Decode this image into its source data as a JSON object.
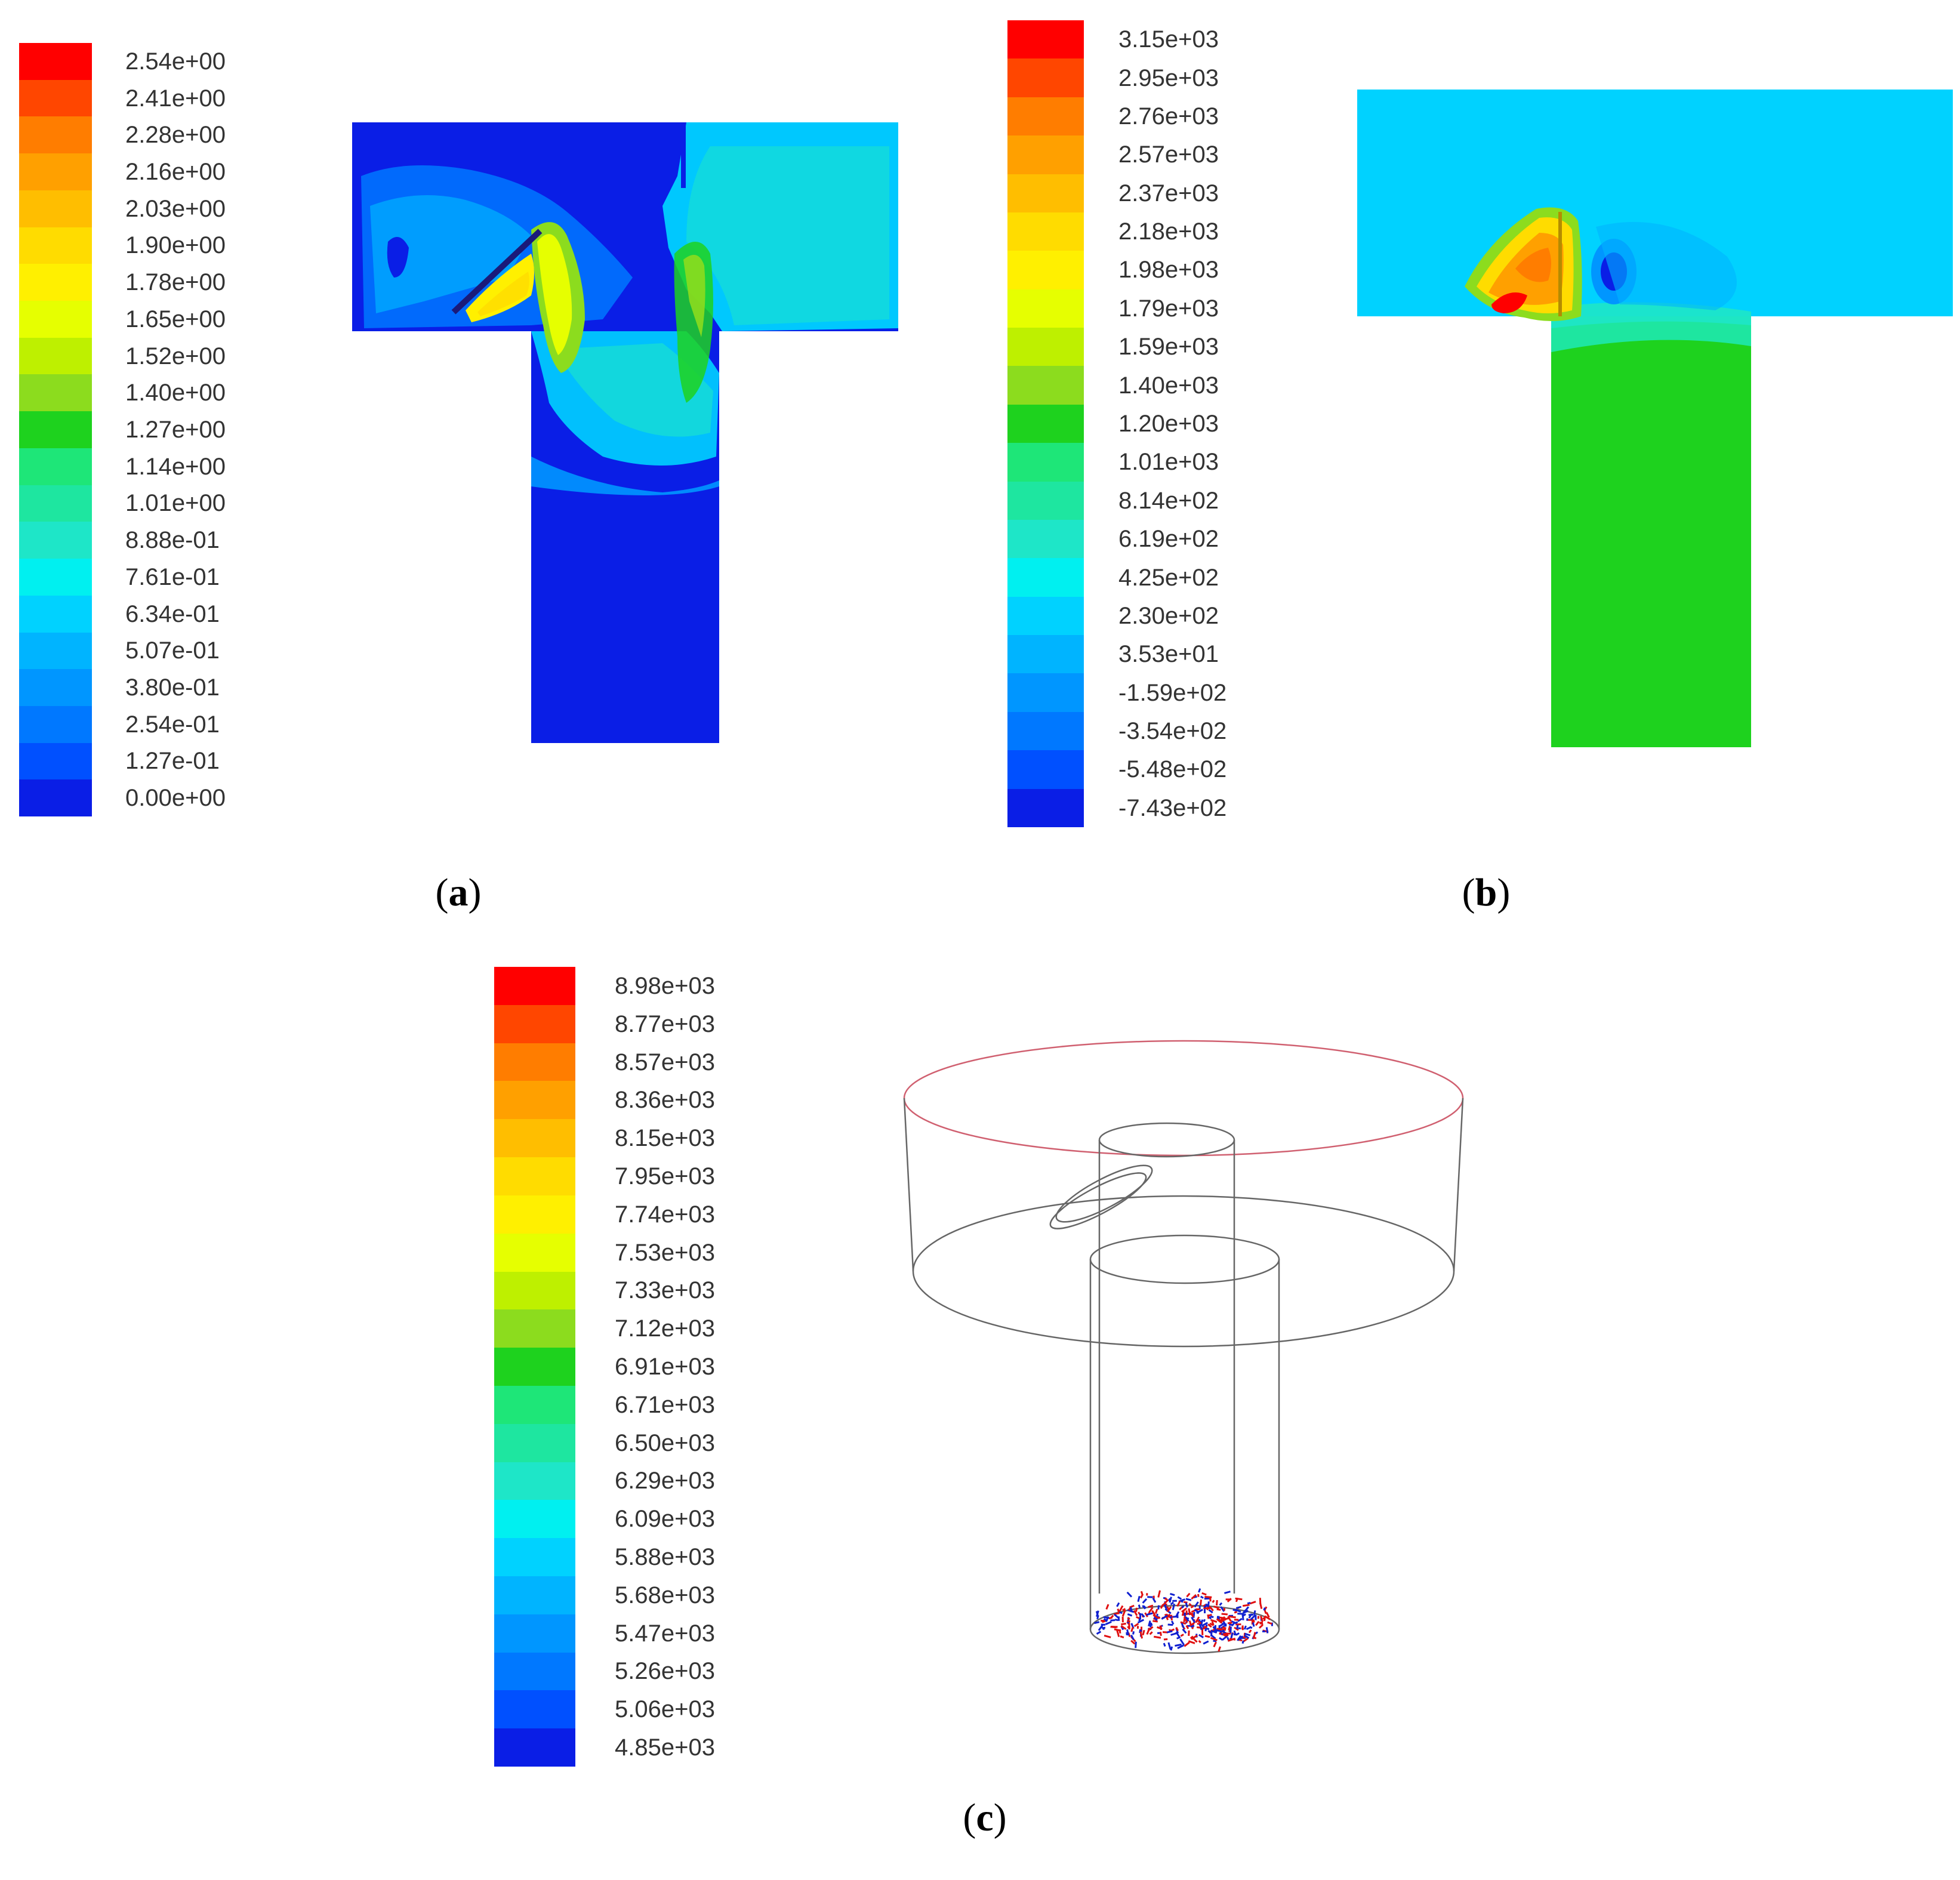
{
  "panels": {
    "a": {
      "caption_open": "(",
      "caption_letter": "a",
      "caption_close": ")",
      "legend_labels": [
        "2.54e+00",
        "2.41e+00",
        "2.28e+00",
        "2.16e+00",
        "2.03e+00",
        "1.90e+00",
        "1.78e+00",
        "1.65e+00",
        "1.52e+00",
        "1.40e+00",
        "1.27e+00",
        "1.14e+00",
        "1.01e+00",
        "8.88e-01",
        "7.61e-01",
        "6.34e-01",
        "5.07e-01",
        "3.80e-01",
        "2.54e-01",
        "1.27e-01",
        "0.00e+00"
      ]
    },
    "b": {
      "caption_open": "(",
      "caption_letter": "b",
      "caption_close": ")",
      "legend_labels": [
        "3.15e+03",
        "2.95e+03",
        "2.76e+03",
        "2.57e+03",
        "2.37e+03",
        "2.18e+03",
        "1.98e+03",
        "1.79e+03",
        "1.59e+03",
        "1.40e+03",
        "1.20e+03",
        "1.01e+03",
        "8.14e+02",
        "6.19e+02",
        "4.25e+02",
        "2.30e+02",
        "3.53e+01",
        "-1.59e+02",
        "-3.54e+02",
        "-5.48e+02",
        "-7.43e+02"
      ]
    },
    "c": {
      "caption_open": "(",
      "caption_letter": "c",
      "caption_close": ")",
      "legend_labels": [
        "8.98e+03",
        "8.77e+03",
        "8.57e+03",
        "8.36e+03",
        "8.15e+03",
        "7.95e+03",
        "7.74e+03",
        "7.53e+03",
        "7.33e+03",
        "7.12e+03",
        "6.91e+03",
        "6.71e+03",
        "6.50e+03",
        "6.29e+03",
        "6.09e+03",
        "5.88e+03",
        "5.68e+03",
        "5.47e+03",
        "5.26e+03",
        "5.06e+03",
        "4.85e+03"
      ]
    }
  },
  "colorscale": [
    "#ff0000",
    "#ff4600",
    "#ff7d00",
    "#ffa000",
    "#ffbe00",
    "#ffdc00",
    "#fff000",
    "#e6ff00",
    "#bef000",
    "#8cdc1e",
    "#1ed21e",
    "#1ee678",
    "#1ee6a0",
    "#1ee6c8",
    "#00f0f0",
    "#00d2ff",
    "#00b4ff",
    "#0096ff",
    "#0078ff",
    "#0050ff",
    "#0a1ee6"
  ]
}
